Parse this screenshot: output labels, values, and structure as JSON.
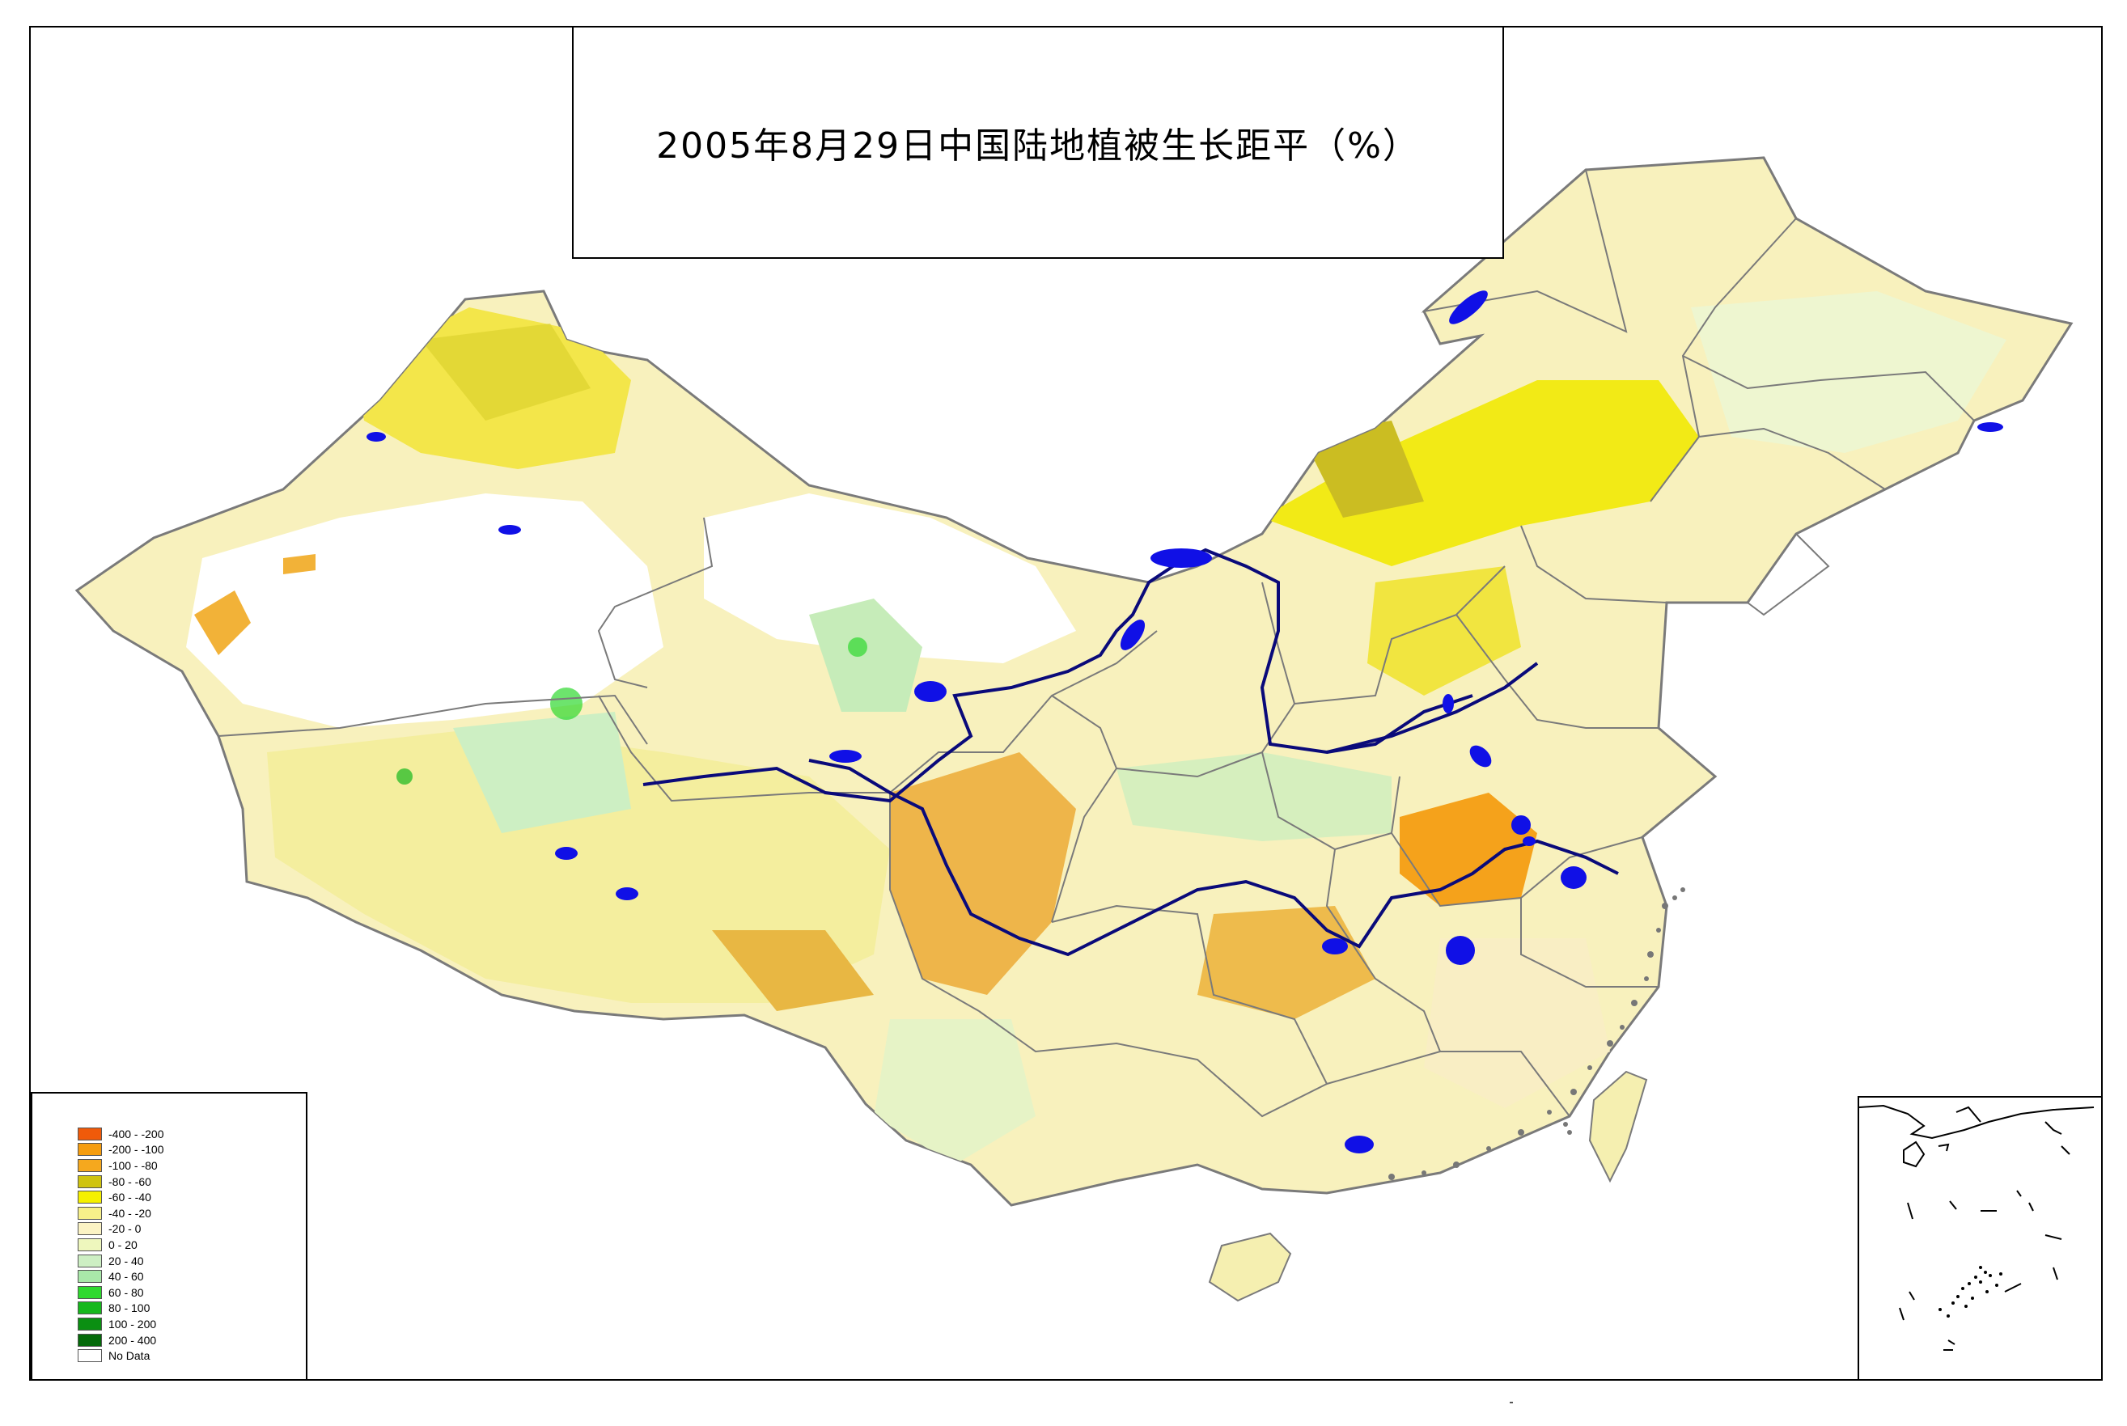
{
  "title": "2005年8月29日中国陆地植被生长距平（%）",
  "legend": [
    {
      "label": "-400 - -200",
      "color": "#f05a0a"
    },
    {
      "label": "-200 - -100",
      "color": "#f59d0f"
    },
    {
      "label": "-100 - -80",
      "color": "#f5a81e"
    },
    {
      "label": "-80 - -60",
      "color": "#cfc30f"
    },
    {
      "label": "-60 - -40",
      "color": "#f5f000"
    },
    {
      "label": "-40 - -20",
      "color": "#f7f08a"
    },
    {
      "label": "-20 - 0",
      "color": "#fbf3c4"
    },
    {
      "label": "0 - 20",
      "color": "#eef7bd"
    },
    {
      "label": "20 - 40",
      "color": "#cdefc3"
    },
    {
      "label": "40 - 60",
      "color": "#a9e8a9"
    },
    {
      "label": "60 - 80",
      "color": "#2fd92f"
    },
    {
      "label": "80 - 100",
      "color": "#16b81c"
    },
    {
      "label": "100 - 200",
      "color": "#0b8f12"
    },
    {
      "label": "200 - 400",
      "color": "#056a0a"
    },
    {
      "label": "No Data",
      "color": "#ffffff"
    }
  ],
  "map_colors": {
    "river": "#0a0a7a",
    "lake": "#1010e6",
    "border": "#7a7a7a",
    "coast_dots": "#777777"
  }
}
